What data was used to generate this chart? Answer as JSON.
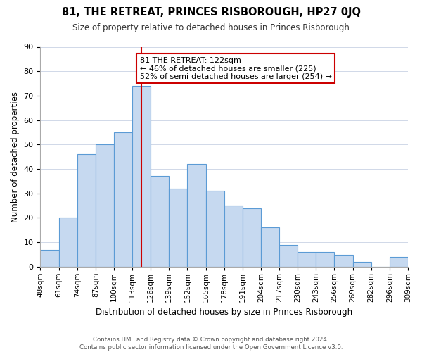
{
  "title": "81, THE RETREAT, PRINCES RISBOROUGH, HP27 0JQ",
  "subtitle": "Size of property relative to detached houses in Princes Risborough",
  "xlabel": "Distribution of detached houses by size in Princes Risborough",
  "ylabel": "Number of detached properties",
  "footer_line1": "Contains HM Land Registry data © Crown copyright and database right 2024.",
  "footer_line2": "Contains public sector information licensed under the Open Government Licence v3.0.",
  "tick_labels": [
    "48sqm",
    "61sqm",
    "74sqm",
    "87sqm",
    "100sqm",
    "113sqm",
    "126sqm",
    "139sqm",
    "152sqm",
    "165sqm",
    "178sqm",
    "191sqm",
    "204sqm",
    "217sqm",
    "230sqm",
    "243sqm",
    "256sqm",
    "269sqm",
    "282sqm",
    "296sqm",
    "309sqm"
  ],
  "values": [
    7,
    20,
    46,
    50,
    55,
    74,
    37,
    32,
    42,
    31,
    25,
    24,
    16,
    9,
    6,
    6,
    5,
    2,
    0,
    4
  ],
  "bar_color": "#c6d9f0",
  "bar_edge_color": "#5b9bd5",
  "vline_color": "#cc0000",
  "vline_x": 5.5,
  "annotation_text": "81 THE RETREAT: 122sqm\n← 46% of detached houses are smaller (225)\n52% of semi-detached houses are larger (254) →",
  "annotation_box_color": "#ffffff",
  "annotation_box_edge": "#cc0000",
  "ylim": [
    0,
    90
  ],
  "yticks": [
    0,
    10,
    20,
    30,
    40,
    50,
    60,
    70,
    80,
    90
  ],
  "background_color": "#ffffff",
  "grid_color": "#d0d8e8"
}
